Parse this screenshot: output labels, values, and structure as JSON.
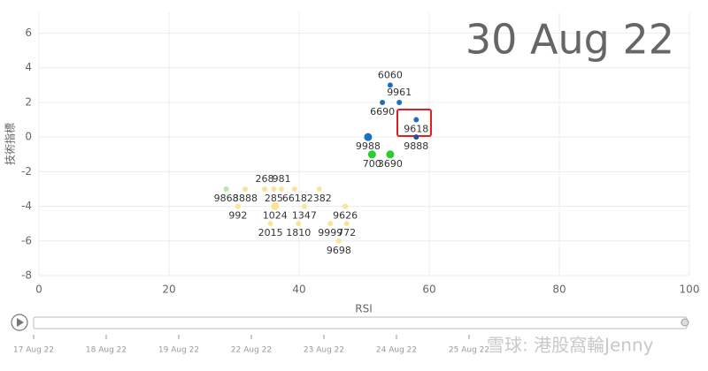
{
  "chart_data": {
    "type": "scatter",
    "title": "30 Aug 22",
    "x_label": "RSI",
    "y_label": "技術指標",
    "x": [
      54.0,
      55.4,
      52.8,
      58.0,
      58.0,
      50.6,
      51.2,
      54.0,
      34.7,
      37.3,
      28.8,
      31.7,
      36.1,
      39.3,
      43.1,
      30.6,
      36.3,
      40.8,
      47.1,
      35.6,
      39.9,
      44.8,
      47.3,
      46.1
    ],
    "values": [
      3,
      2,
      2,
      1,
      0,
      0,
      -1,
      -1,
      -3,
      -3,
      -3,
      -3,
      -3,
      -3,
      -3,
      -4,
      -4,
      -4,
      -4,
      -5,
      -5,
      -5,
      -5,
      -6
    ],
    "point_labels": [
      "6060",
      "9961",
      "6690",
      "9618",
      "9888",
      "9988",
      "700",
      "3690",
      "268",
      "981",
      "9868",
      "3888",
      "285",
      "6618",
      "2382",
      "992",
      "1024",
      "1347",
      "9626",
      "2015",
      "1810",
      "9999",
      "772",
      "9698"
    ],
    "colors": [
      "#1e6fc1",
      "#1e6fc1",
      "#1e6fc1",
      "#1e6fc1",
      "#2a4d9b",
      "#1e6fc1",
      "#2ecc2e",
      "#2ecc2e",
      "#fde29a",
      "#fde29a",
      "#b5e8a5",
      "#fde29a",
      "#fde29a",
      "#fde29a",
      "#fde29a",
      "#fde29a",
      "#fde29a",
      "#fde29a",
      "#fde29a",
      "#fde29a",
      "#fde29a",
      "#fde29a",
      "#fde29a",
      "#fde29a"
    ],
    "xlim": [
      0,
      100
    ],
    "xticks": [
      0,
      20,
      40,
      60,
      80,
      100
    ],
    "ylim": [
      -8,
      7.2
    ],
    "yticks": [
      -8,
      -6,
      -4,
      -2,
      0,
      2,
      4,
      6
    ],
    "grid": true
  },
  "timeline": {
    "labels": [
      "17 Aug 22",
      "18 Aug 22",
      "19 Aug 22",
      "22 Aug 22",
      "23 Aug 22",
      "24 Aug 22",
      "25 Aug 22"
    ]
  },
  "watermark": "雪球: 港股窩輪Jenny"
}
